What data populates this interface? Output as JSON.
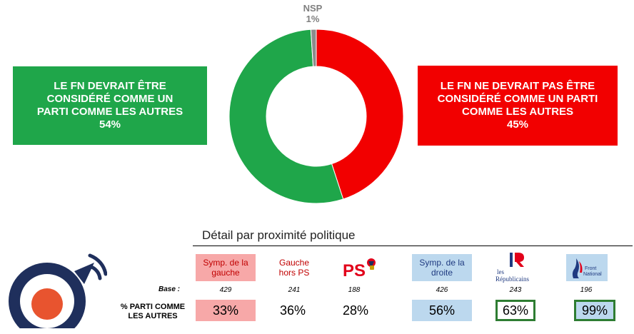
{
  "chart_data": {
    "type": "pie",
    "style": "donut",
    "slices": [
      {
        "label": "LE FN NE DEVRAIT PAS ÊTRE CONSIDÉRÉ COMME UN PARTI COMME LES AUTRES",
        "value": 45,
        "color": "#f20000"
      },
      {
        "label": "LE FN DEVRAIT ÊTRE CONSIDÉRÉ COMME UN PARTI COMME LES AUTRES",
        "value": 54,
        "color": "#1fa64a"
      },
      {
        "label": "NSP",
        "value": 1,
        "color": "#8c8c8c"
      }
    ]
  },
  "labels": {
    "nsp_name": "NSP",
    "nsp_value": "1%",
    "green_line1": "LE FN DEVRAIT ÊTRE",
    "green_line2": "CONSIDÉRÉ COMME UN",
    "green_line3": "PARTI COMME LES AUTRES",
    "green_value": "54%",
    "red_line1": "LE FN NE DEVRAIT PAS ÊTRE",
    "red_line2": "CONSIDÉRÉ COMME UN PARTI",
    "red_line3": "COMME LES AUTRES",
    "red_value": "45%"
  },
  "detail": {
    "title": "Détail par proximité politique",
    "base_label": "Base :",
    "row_label_line1": "% PARTI COMME",
    "row_label_line2": "LES AUTRES",
    "groups": [
      {
        "header_line1": "Symp. de la",
        "header_line2": "gauche",
        "base": "429",
        "value": "33%"
      },
      {
        "header_line1": "Gauche",
        "header_line2": "hors PS",
        "base": "241",
        "value": "36%"
      },
      {
        "logo": "ps-logo",
        "logo_text": "PS",
        "base": "188",
        "value": "28%"
      },
      {
        "header_line1": "Symp. de la",
        "header_line2": "droite",
        "base": "426",
        "value": "56%"
      },
      {
        "logo": "les-republicains-logo",
        "logo_text_line1": "les",
        "logo_text_line2": "Républicains",
        "base": "243",
        "value": "63%"
      },
      {
        "logo": "front-national-logo",
        "logo_text_line1": "Front",
        "logo_text_line2": "National",
        "base": "196",
        "value": "99%"
      }
    ]
  },
  "colors": {
    "green": "#1fa64a",
    "red": "#f20000",
    "grey": "#8c8c8c",
    "pink_cell": "#f7a8a8",
    "blue_cell": "#bcd8ee",
    "outline_green": "#2e7d32",
    "brand_navy": "#1f2f5c",
    "brand_orange": "#e8542f"
  }
}
